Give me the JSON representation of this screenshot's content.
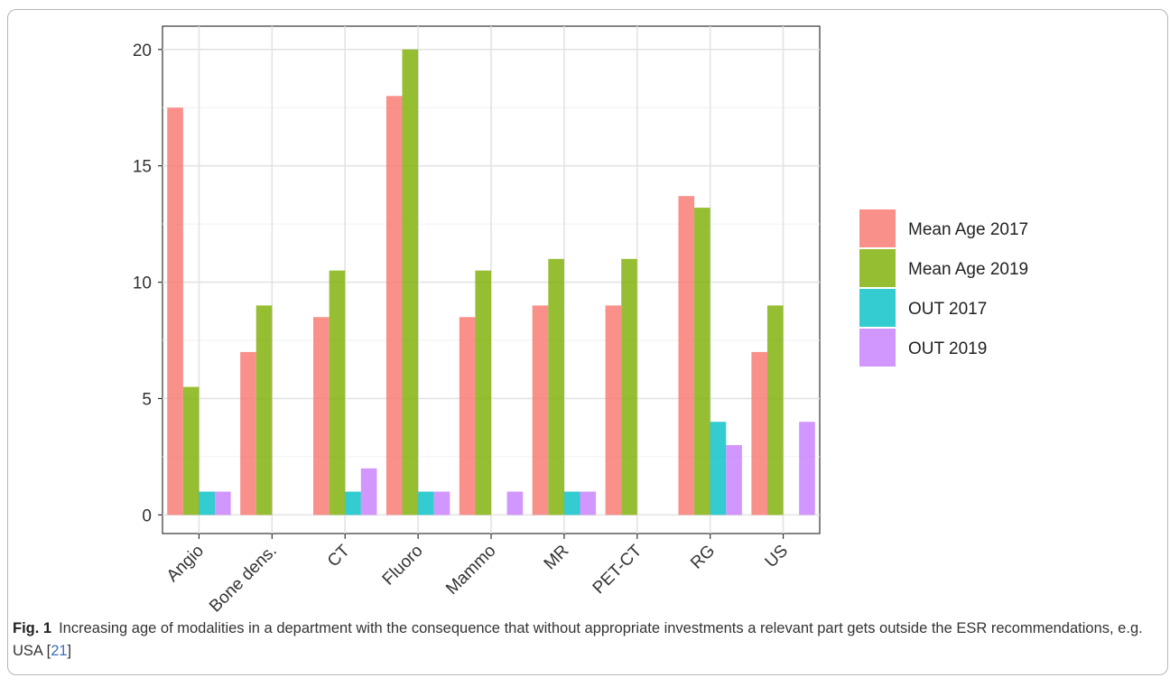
{
  "chart_data": {
    "type": "bar",
    "categories": [
      "Angio",
      "Bone dens.",
      "CT",
      "Fluoro",
      "Mammo",
      "MR",
      "PET-CT",
      "RG",
      "US"
    ],
    "series": [
      {
        "name": "Mean Age 2017",
        "color": "#f8766d",
        "values": [
          17.5,
          7,
          8.5,
          18,
          8.5,
          9,
          9,
          13.7,
          7
        ]
      },
      {
        "name": "Mean Age 2019",
        "color": "#7cae00",
        "values": [
          5.5,
          9,
          10.5,
          20,
          10.5,
          11,
          11,
          13.2,
          9
        ]
      },
      {
        "name": "OUT 2017",
        "color": "#00bfc4",
        "values": [
          1,
          0,
          1,
          1,
          0,
          1,
          0,
          4,
          0
        ]
      },
      {
        "name": "OUT 2019",
        "color": "#c77cff",
        "values": [
          1,
          0,
          2,
          1,
          1,
          1,
          0,
          3,
          4
        ]
      }
    ],
    "yticks": [
      0,
      5,
      10,
      15,
      20
    ],
    "ylim": [
      -0.8,
      21
    ],
    "grid": true,
    "legend_position": "right",
    "xlabel": "",
    "ylabel": ""
  },
  "caption": {
    "label": "Fig. 1",
    "text": "Increasing age of modalities in a department with the consequence that without appropriate investments a relevant part gets outside the ESR recommendations, e.g. USA [",
    "ref": "21",
    "close": "]"
  }
}
